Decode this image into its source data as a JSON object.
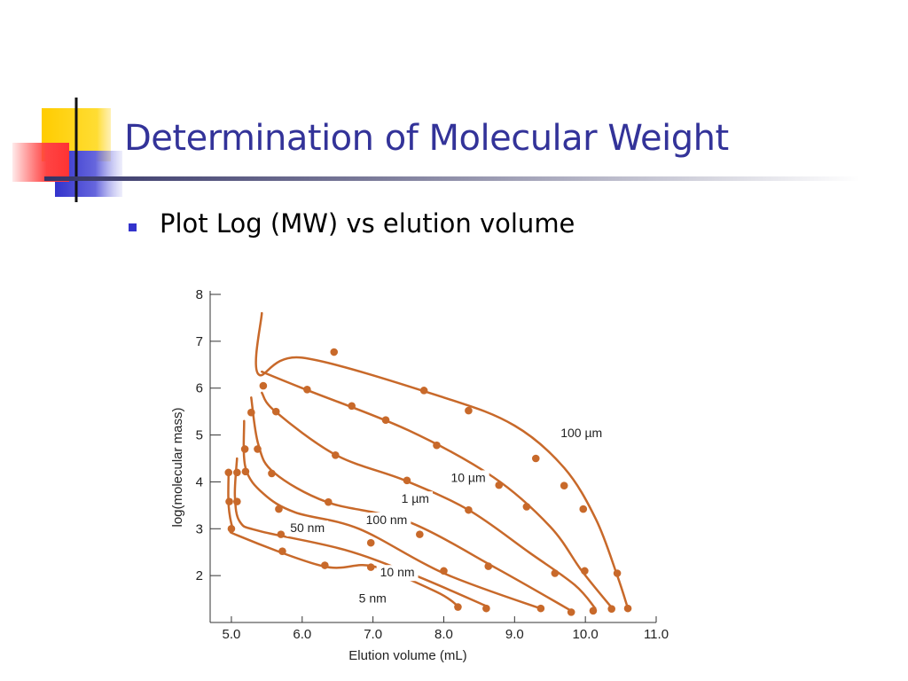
{
  "slide": {
    "title": "Determination of Molecular Weight",
    "bullet": "Plot Log (MW) vs elution volume",
    "accent_colors": {
      "title": "#333399",
      "bullet": "#3333cc",
      "yellow": "#ffcc00",
      "red": "#ff3333",
      "blue": "#3333cc"
    }
  },
  "chart_data": {
    "type": "line",
    "title": "",
    "xlabel": "Elution volume (mL)",
    "ylabel": "log(molecular mass)",
    "xlim": [
      4.7,
      11.0
    ],
    "ylim": [
      1.0,
      8.0
    ],
    "xticks": [
      "5.0",
      "6.0",
      "7.0",
      "8.0",
      "9.0",
      "10.0",
      "11.0"
    ],
    "yticks": [
      "2",
      "3",
      "4",
      "5",
      "6",
      "7",
      "8"
    ],
    "line_color": "#c8692a",
    "series": [
      {
        "name": "100 µm",
        "label_at": [
          9.65,
          4.95
        ],
        "curve": [
          [
            5.43,
            7.6
          ],
          [
            5.38,
            6.3
          ],
          [
            6.0,
            6.65
          ],
          [
            8.0,
            5.8
          ],
          [
            9.0,
            5.2
          ],
          [
            9.7,
            4.3
          ],
          [
            10.15,
            3.2
          ],
          [
            10.45,
            2.0
          ],
          [
            10.6,
            1.3
          ]
        ],
        "points": [
          [
            6.45,
            6.77
          ],
          [
            7.72,
            5.95
          ],
          [
            8.35,
            5.52
          ],
          [
            9.3,
            4.5
          ],
          [
            9.7,
            3.92
          ],
          [
            9.97,
            3.42
          ],
          [
            10.45,
            2.05
          ],
          [
            10.6,
            1.3
          ]
        ]
      },
      {
        "name": "10 µm",
        "label_at": [
          8.1,
          4.0
        ],
        "curve": [
          [
            5.43,
            6.35
          ],
          [
            6.05,
            5.97
          ],
          [
            7.5,
            5.1
          ],
          [
            8.7,
            4.1
          ],
          [
            9.5,
            3.05
          ],
          [
            9.95,
            2.1
          ],
          [
            10.38,
            1.3
          ]
        ],
        "points": [
          [
            5.45,
            6.05
          ],
          [
            6.07,
            5.97
          ],
          [
            6.7,
            5.62
          ],
          [
            7.18,
            5.32
          ],
          [
            7.9,
            4.78
          ],
          [
            8.78,
            3.93
          ],
          [
            9.17,
            3.47
          ],
          [
            9.99,
            2.1
          ],
          [
            10.37,
            1.29
          ]
        ]
      },
      {
        "name": "1 µm",
        "label_at": [
          7.4,
          3.55
        ],
        "curve": [
          [
            5.43,
            5.9
          ],
          [
            5.62,
            5.5
          ],
          [
            6.48,
            4.57
          ],
          [
            7.45,
            4.03
          ],
          [
            8.35,
            3.4
          ],
          [
            9.2,
            2.5
          ],
          [
            9.85,
            1.8
          ],
          [
            10.14,
            1.3
          ]
        ],
        "points": [
          [
            5.63,
            5.5
          ],
          [
            6.47,
            4.57
          ],
          [
            7.48,
            4.03
          ],
          [
            8.35,
            3.4
          ],
          [
            9.57,
            2.05
          ],
          [
            10.11,
            1.25
          ]
        ]
      },
      {
        "name": "100 nm",
        "label_at": [
          6.9,
          3.1
        ],
        "curve": [
          [
            5.28,
            5.8
          ],
          [
            5.38,
            4.8
          ],
          [
            5.6,
            4.2
          ],
          [
            6.35,
            3.57
          ],
          [
            7.5,
            3.15
          ],
          [
            8.75,
            2.15
          ],
          [
            9.8,
            1.25
          ]
        ],
        "points": [
          [
            5.28,
            5.48
          ],
          [
            5.37,
            4.7
          ],
          [
            5.57,
            4.18
          ],
          [
            6.37,
            3.57
          ],
          [
            7.66,
            2.88
          ],
          [
            8.63,
            2.2
          ],
          [
            9.8,
            1.22
          ]
        ]
      },
      {
        "name": "50 nm",
        "label_at": [
          5.83,
          2.93
        ],
        "curve": [
          [
            5.18,
            5.3
          ],
          [
            5.2,
            4.3
          ],
          [
            5.45,
            3.75
          ],
          [
            5.9,
            3.35
          ],
          [
            6.8,
            3.0
          ],
          [
            8.0,
            2.05
          ],
          [
            9.4,
            1.28
          ]
        ],
        "points": [
          [
            5.19,
            4.7
          ],
          [
            5.2,
            4.22
          ],
          [
            5.67,
            3.42
          ],
          [
            7.47,
            2.05
          ],
          [
            9.37,
            1.3
          ]
        ]
      },
      {
        "name": "10 nm",
        "label_at": [
          7.1,
          1.98
        ],
        "curve": [
          [
            5.08,
            4.5
          ],
          [
            5.05,
            3.7
          ],
          [
            5.12,
            3.15
          ],
          [
            5.4,
            2.95
          ],
          [
            6.6,
            2.55
          ],
          [
            7.6,
            2.0
          ],
          [
            8.6,
            1.35
          ]
        ],
        "points": [
          [
            5.08,
            4.2
          ],
          [
            5.08,
            3.58
          ],
          [
            5.7,
            2.88
          ],
          [
            6.97,
            2.7
          ],
          [
            8.0,
            2.1
          ],
          [
            8.6,
            1.3
          ]
        ]
      },
      {
        "name": "5 nm",
        "label_at": [
          6.8,
          1.43
        ],
        "curve": [
          [
            4.96,
            4.2
          ],
          [
            4.96,
            3.5
          ],
          [
            5.02,
            3.0
          ],
          [
            5.1,
            2.85
          ],
          [
            6.3,
            2.2
          ],
          [
            7.0,
            2.2
          ],
          [
            7.9,
            1.65
          ],
          [
            8.2,
            1.35
          ]
        ],
        "points": [
          [
            4.96,
            4.2
          ],
          [
            4.97,
            3.58
          ],
          [
            5.0,
            3.0
          ],
          [
            5.72,
            2.52
          ],
          [
            6.32,
            2.22
          ],
          [
            6.97,
            2.18
          ],
          [
            8.2,
            1.33
          ]
        ]
      }
    ]
  }
}
